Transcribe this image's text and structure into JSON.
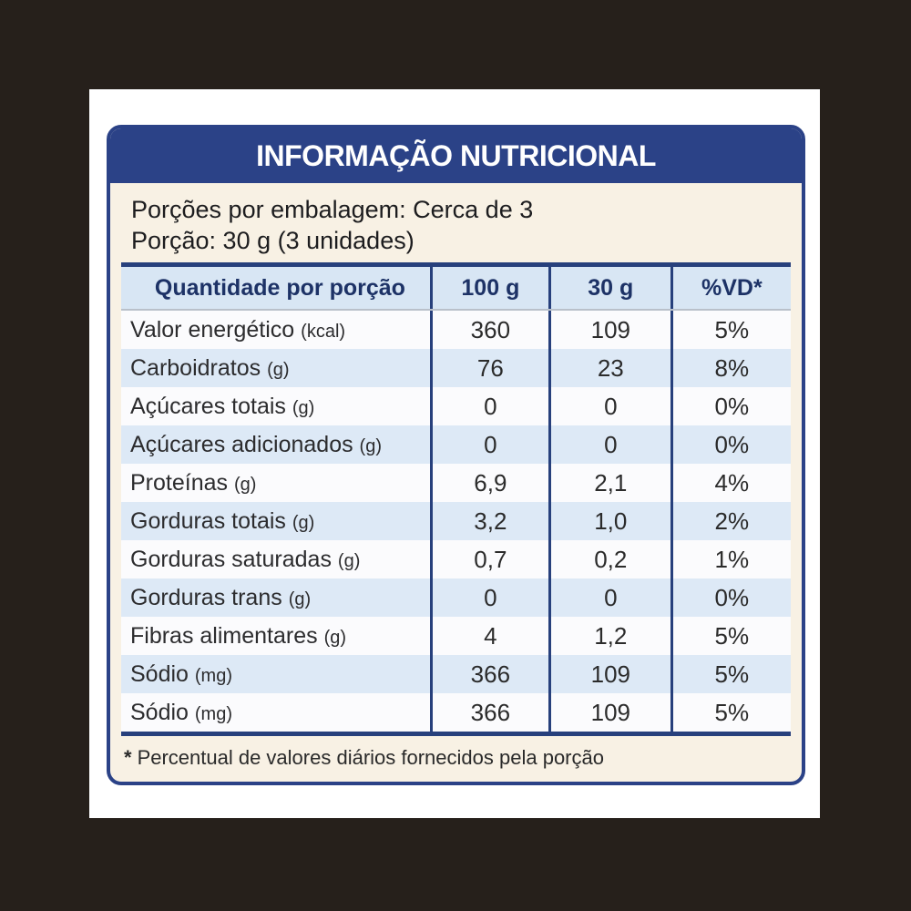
{
  "label": {
    "title": "INFORMAÇÃO NUTRICIONAL",
    "serving_info": {
      "line1": "Porções por embalagem: Cerca de 3",
      "line2": "Porção: 30 g (3 unidades)"
    },
    "table": {
      "headers": [
        "Quantidade por porção",
        "100 g",
        "30 g",
        "%VD*"
      ],
      "rows": [
        {
          "name": "Valor energético",
          "unit": "(kcal)",
          "per100g": "360",
          "per30g": "109",
          "vd": "5%"
        },
        {
          "name": "Carboidratos",
          "unit": "(g)",
          "per100g": "76",
          "per30g": "23",
          "vd": "8%"
        },
        {
          "name": "Açúcares totais",
          "unit": "(g)",
          "per100g": "0",
          "per30g": "0",
          "vd": "0%"
        },
        {
          "name": "Açúcares adicionados",
          "unit": "(g)",
          "per100g": "0",
          "per30g": "0",
          "vd": "0%"
        },
        {
          "name": "Proteínas",
          "unit": "(g)",
          "per100g": "6,9",
          "per30g": "2,1",
          "vd": "4%"
        },
        {
          "name": "Gorduras totais",
          "unit": "(g)",
          "per100g": "3,2",
          "per30g": "1,0",
          "vd": "2%"
        },
        {
          "name": "Gorduras saturadas",
          "unit": "(g)",
          "per100g": "0,7",
          "per30g": "0,2",
          "vd": "1%"
        },
        {
          "name": "Gorduras trans",
          "unit": "(g)",
          "per100g": "0",
          "per30g": "0",
          "vd": "0%"
        },
        {
          "name": "Fibras alimentares",
          "unit": "(g)",
          "per100g": "4",
          "per30g": "1,2",
          "vd": "5%"
        },
        {
          "name": "Sódio",
          "unit": "(mg)",
          "per100g": "366",
          "per30g": "109",
          "vd": "5%"
        },
        {
          "name": "Sódio",
          "unit": "(mg)",
          "per100g": "366",
          "per30g": "109",
          "vd": "5%"
        }
      ]
    },
    "footnote": {
      "marker": "*",
      "text": "Percentual de valores diários fornecidos pela porção"
    },
    "colors": {
      "outer_background": "#26201b",
      "panel_background": "#ffffff",
      "card_background": "#f8f1e4",
      "navy": "#2b4287",
      "table_line_navy": "#27407c",
      "header_row_background": "#d8e6f4",
      "stripe_row_background": "#dde9f6",
      "plain_row_background": "#fbfbfd",
      "header_text": "#1d3266",
      "body_text": "#2c2c2e"
    }
  }
}
